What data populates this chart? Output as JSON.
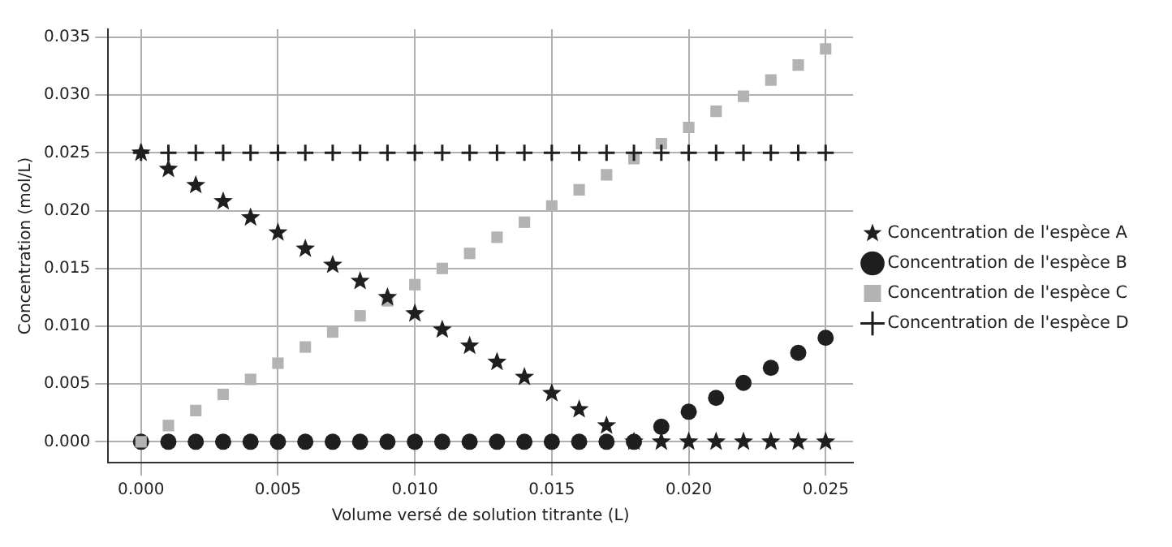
{
  "chart_data": {
    "type": "scatter",
    "xlabel": "Volume versé de solution titrante (L)",
    "ylabel": "Concentration (mol/L)",
    "x": [
      0,
      0.001,
      0.002,
      0.003,
      0.004,
      0.005,
      0.006,
      0.007,
      0.008,
      0.009,
      0.01,
      0.011,
      0.012,
      0.013,
      0.014,
      0.015,
      0.016,
      0.017,
      0.018,
      0.019,
      0.02,
      0.021,
      0.022,
      0.023,
      0.024,
      0.025
    ],
    "series": [
      {
        "name": "Concentration de l'espèce A",
        "color": "#1f1f1f",
        "marker": "star",
        "values": [
          0.025,
          0.0236,
          0.0222,
          0.0208,
          0.0194,
          0.0181,
          0.0167,
          0.0153,
          0.0139,
          0.0125,
          0.0111,
          0.0097,
          0.0083,
          0.0069,
          0.0056,
          0.0042,
          0.0028,
          0.0014,
          0.0,
          0,
          0,
          0,
          0,
          0,
          0,
          0
        ]
      },
      {
        "name": "Concentration de l'espèce B",
        "color": "#1f1f1f",
        "marker": "circle",
        "values": [
          0,
          0,
          0,
          0,
          0,
          0,
          0,
          0,
          0,
          0,
          0,
          0,
          0,
          0,
          0,
          0,
          0,
          0,
          0,
          0.0013,
          0.0026,
          0.0038,
          0.0051,
          0.0064,
          0.0077,
          0.009
        ]
      },
      {
        "name": "Concentration de l'espèce C",
        "color": "#b3b3b3",
        "marker": "square",
        "values": [
          0,
          0.0014,
          0.0027,
          0.0041,
          0.0054,
          0.0068,
          0.0082,
          0.0095,
          0.0109,
          0.0122,
          0.0136,
          0.015,
          0.0163,
          0.0177,
          0.019,
          0.0204,
          0.0218,
          0.0231,
          0.0245,
          0.0258,
          0.0272,
          0.0286,
          0.0299,
          0.0313,
          0.0326,
          0.034
        ]
      },
      {
        "name": "Concentration de l'espèce D",
        "color": "#1f1f1f",
        "marker": "cross",
        "values": [
          0.025,
          0.025,
          0.025,
          0.025,
          0.025,
          0.025,
          0.025,
          0.025,
          0.025,
          0.025,
          0.025,
          0.025,
          0.025,
          0.025,
          0.025,
          0.025,
          0.025,
          0.025,
          0.025,
          0.025,
          0.025,
          0.025,
          0.025,
          0.025,
          0.025,
          0.025
        ]
      }
    ],
    "xlim": [
      -0.0012,
      0.026
    ],
    "xticks": [
      {
        "value": 0,
        "label": "0.000"
      },
      {
        "value": 0.005,
        "label": "0.005"
      },
      {
        "value": 0.01,
        "label": "0.010"
      },
      {
        "value": 0.015,
        "label": "0.015"
      },
      {
        "value": 0.02,
        "label": "0.020"
      },
      {
        "value": 0.025,
        "label": "0.025"
      }
    ],
    "ylim": [
      -0.0018,
      0.0357
    ],
    "yticks": [
      {
        "value": 0,
        "label": "0.000"
      },
      {
        "value": 0.005,
        "label": "0.005"
      },
      {
        "value": 0.01,
        "label": "0.010"
      },
      {
        "value": 0.015,
        "label": "0.015"
      },
      {
        "value": 0.02,
        "label": "0.020"
      },
      {
        "value": 0.025,
        "label": "0.025"
      },
      {
        "value": 0.03,
        "label": "0.030"
      },
      {
        "value": 0.035,
        "label": "0.035"
      }
    ],
    "grid": true,
    "legend": "right"
  }
}
